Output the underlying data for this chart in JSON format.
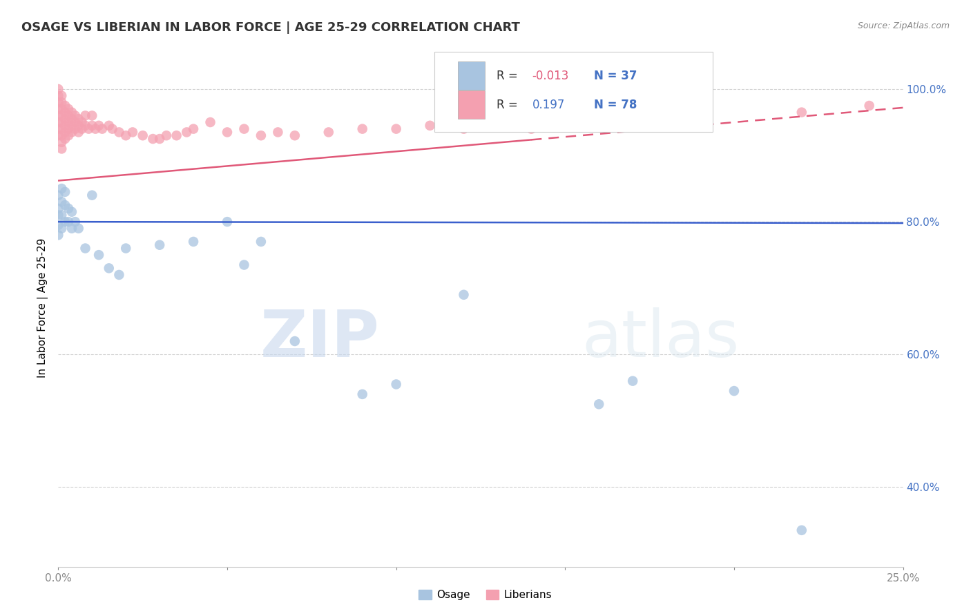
{
  "title": "OSAGE VS LIBERIAN IN LABOR FORCE | AGE 25-29 CORRELATION CHART",
  "source_text": "Source: ZipAtlas.com",
  "ylabel": "In Labor Force | Age 25-29",
  "xlim": [
    0.0,
    0.25
  ],
  "ylim": [
    0.28,
    1.06
  ],
  "yticks": [
    0.4,
    0.6,
    0.8,
    1.0
  ],
  "ytick_labels": [
    "40.0%",
    "60.0%",
    "80.0%",
    "100.0%"
  ],
  "xticks": [
    0.0,
    0.05,
    0.1,
    0.15,
    0.2,
    0.25
  ],
  "xtick_labels": [
    "0.0%",
    "",
    "",
    "",
    "",
    "25.0%"
  ],
  "osage_R": -0.013,
  "osage_N": 37,
  "liberian_R": 0.197,
  "liberian_N": 78,
  "osage_color": "#a8c4e0",
  "liberian_color": "#f4a0b0",
  "osage_line_color": "#3a5fcd",
  "liberian_line_color": "#e05878",
  "background_color": "#ffffff",
  "watermark_zip": "ZIP",
  "watermark_atlas": "atlas",
  "legend_R1_color": "#e05878",
  "legend_R2_color": "#4472c4",
  "legend_N_color": "#4472c4",
  "osage_scatter": {
    "x": [
      0.0,
      0.0,
      0.0,
      0.0,
      0.0,
      0.001,
      0.001,
      0.001,
      0.001,
      0.002,
      0.002,
      0.002,
      0.003,
      0.003,
      0.004,
      0.004,
      0.005,
      0.006,
      0.008,
      0.01,
      0.012,
      0.015,
      0.018,
      0.02,
      0.03,
      0.04,
      0.05,
      0.055,
      0.06,
      0.07,
      0.09,
      0.1,
      0.12,
      0.16,
      0.17,
      0.2,
      0.22
    ],
    "y": [
      0.84,
      0.82,
      0.81,
      0.795,
      0.78,
      0.85,
      0.83,
      0.81,
      0.79,
      0.845,
      0.825,
      0.8,
      0.82,
      0.8,
      0.815,
      0.79,
      0.8,
      0.79,
      0.76,
      0.84,
      0.75,
      0.73,
      0.72,
      0.76,
      0.765,
      0.77,
      0.8,
      0.735,
      0.77,
      0.62,
      0.54,
      0.555,
      0.69,
      0.525,
      0.56,
      0.545,
      0.335
    ]
  },
  "liberian_scatter": {
    "x": [
      0.0,
      0.0,
      0.0,
      0.0,
      0.0,
      0.0,
      0.0,
      0.0,
      0.001,
      0.001,
      0.001,
      0.001,
      0.001,
      0.001,
      0.001,
      0.001,
      0.001,
      0.002,
      0.002,
      0.002,
      0.002,
      0.002,
      0.002,
      0.003,
      0.003,
      0.003,
      0.003,
      0.003,
      0.004,
      0.004,
      0.004,
      0.004,
      0.005,
      0.005,
      0.005,
      0.006,
      0.006,
      0.006,
      0.007,
      0.007,
      0.008,
      0.008,
      0.009,
      0.01,
      0.01,
      0.011,
      0.012,
      0.013,
      0.015,
      0.016,
      0.018,
      0.02,
      0.022,
      0.025,
      0.028,
      0.03,
      0.032,
      0.035,
      0.038,
      0.04,
      0.045,
      0.05,
      0.055,
      0.06,
      0.065,
      0.07,
      0.08,
      0.09,
      0.1,
      0.11,
      0.12,
      0.13,
      0.14,
      0.15,
      0.17,
      0.19,
      0.22,
      0.24
    ],
    "y": [
      1.0,
      0.99,
      0.98,
      0.97,
      0.96,
      0.95,
      0.94,
      0.93,
      0.99,
      0.98,
      0.97,
      0.96,
      0.95,
      0.94,
      0.93,
      0.92,
      0.91,
      0.975,
      0.965,
      0.955,
      0.945,
      0.935,
      0.925,
      0.97,
      0.96,
      0.95,
      0.94,
      0.93,
      0.965,
      0.955,
      0.945,
      0.935,
      0.96,
      0.95,
      0.94,
      0.955,
      0.945,
      0.935,
      0.95,
      0.94,
      0.96,
      0.945,
      0.94,
      0.96,
      0.945,
      0.94,
      0.945,
      0.94,
      0.945,
      0.94,
      0.935,
      0.93,
      0.935,
      0.93,
      0.925,
      0.925,
      0.93,
      0.93,
      0.935,
      0.94,
      0.95,
      0.935,
      0.94,
      0.93,
      0.935,
      0.93,
      0.935,
      0.94,
      0.94,
      0.945,
      0.94,
      0.945,
      0.94,
      0.95,
      0.955,
      0.96,
      0.965,
      0.975
    ]
  },
  "osage_line_y0": 0.8,
  "osage_line_y1": 0.798,
  "liberian_line_y0": 0.862,
  "liberian_line_y1": 0.972
}
